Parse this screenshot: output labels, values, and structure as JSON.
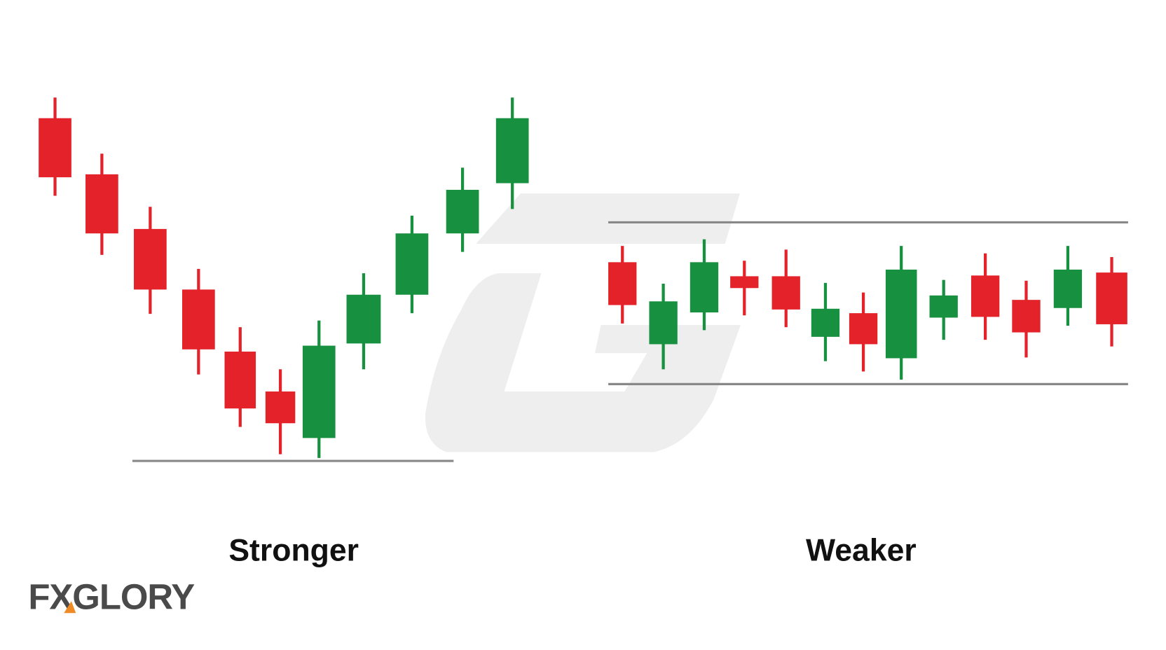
{
  "panels": [
    {
      "label": "Stronger"
    },
    {
      "label": "Weaker"
    }
  ],
  "logo": "FXGLORY"
}
